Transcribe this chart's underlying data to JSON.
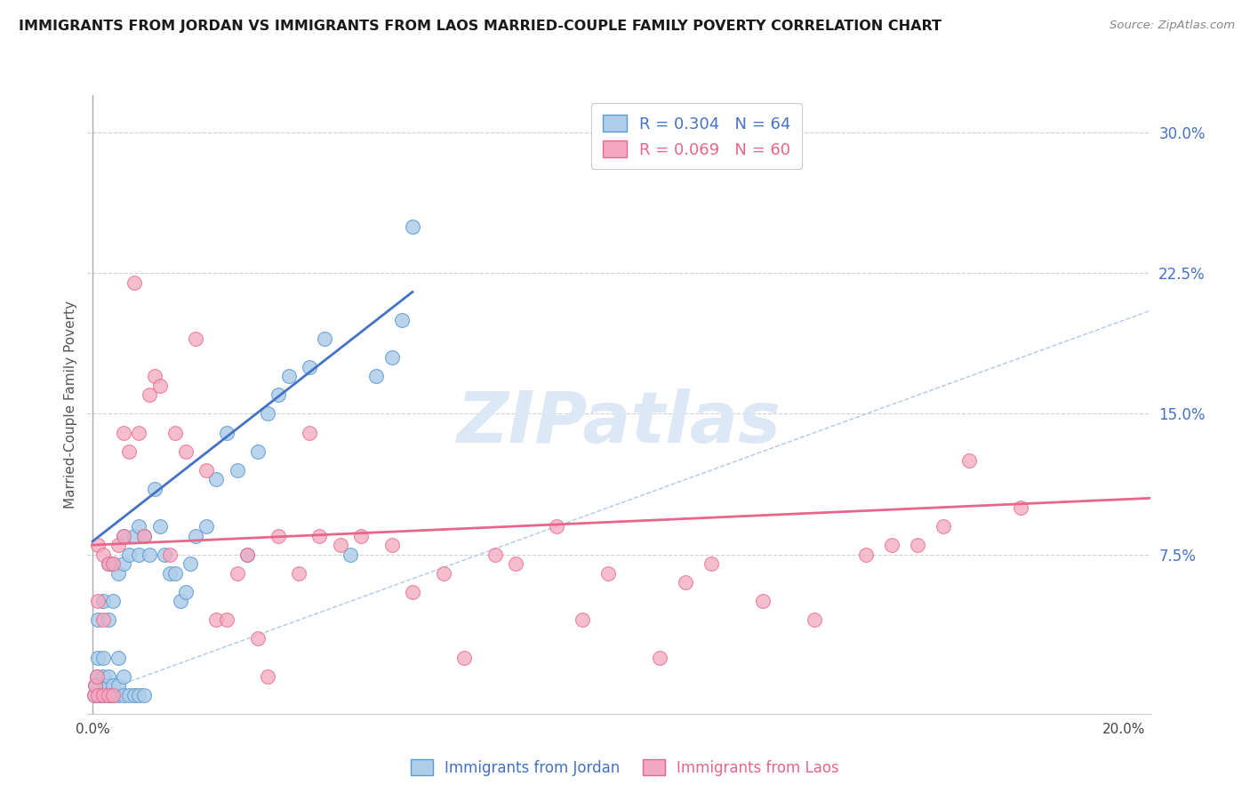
{
  "title": "IMMIGRANTS FROM JORDAN VS IMMIGRANTS FROM LAOS MARRIED-COUPLE FAMILY POVERTY CORRELATION CHART",
  "source": "Source: ZipAtlas.com",
  "ylabel": "Married-Couple Family Poverty",
  "xlim": [
    -0.001,
    0.205
  ],
  "ylim": [
    -0.01,
    0.32
  ],
  "xticks": [
    0.0,
    0.05,
    0.1,
    0.15,
    0.2
  ],
  "xtick_labels": [
    "0.0%",
    "",
    "",
    "",
    "20.0%"
  ],
  "ytick_labels_right": [
    "7.5%",
    "15.0%",
    "22.5%",
    "30.0%"
  ],
  "yticks_right": [
    0.075,
    0.15,
    0.225,
    0.3
  ],
  "legend_jordan": "R = 0.304   N = 64",
  "legend_laos": "R = 0.069   N = 60",
  "jordan_color": "#aecde8",
  "laos_color": "#f4a7c0",
  "jordan_edge_color": "#5b9bd5",
  "laos_edge_color": "#e8668a",
  "jordan_line_color": "#4472c4",
  "laos_line_color": "#e8668a",
  "ref_line_color": "#aec8e8",
  "grid_color": "#d0d0d0",
  "watermark": "ZIPatlas",
  "watermark_color": "#dce8f5",
  "jordan_scatter_x": [
    0.0003,
    0.0005,
    0.0008,
    0.001,
    0.001,
    0.001,
    0.0015,
    0.002,
    0.002,
    0.002,
    0.002,
    0.0025,
    0.003,
    0.003,
    0.003,
    0.003,
    0.003,
    0.004,
    0.004,
    0.004,
    0.004,
    0.005,
    0.005,
    0.005,
    0.005,
    0.006,
    0.006,
    0.006,
    0.006,
    0.007,
    0.007,
    0.008,
    0.008,
    0.009,
    0.009,
    0.009,
    0.01,
    0.01,
    0.011,
    0.012,
    0.013,
    0.014,
    0.015,
    0.016,
    0.017,
    0.018,
    0.019,
    0.02,
    0.022,
    0.024,
    0.026,
    0.028,
    0.03,
    0.032,
    0.034,
    0.036,
    0.038,
    0.042,
    0.045,
    0.05,
    0.055,
    0.058,
    0.06,
    0.062
  ],
  "jordan_scatter_y": [
    0.0,
    0.005,
    0.01,
    0.0,
    0.02,
    0.04,
    0.0,
    0.0,
    0.01,
    0.02,
    0.05,
    0.005,
    0.0,
    0.005,
    0.01,
    0.04,
    0.07,
    0.0,
    0.005,
    0.05,
    0.07,
    0.0,
    0.005,
    0.02,
    0.065,
    0.0,
    0.01,
    0.07,
    0.085,
    0.0,
    0.075,
    0.0,
    0.085,
    0.0,
    0.075,
    0.09,
    0.0,
    0.085,
    0.075,
    0.11,
    0.09,
    0.075,
    0.065,
    0.065,
    0.05,
    0.055,
    0.07,
    0.085,
    0.09,
    0.115,
    0.14,
    0.12,
    0.075,
    0.13,
    0.15,
    0.16,
    0.17,
    0.175,
    0.19,
    0.075,
    0.17,
    0.18,
    0.2,
    0.25
  ],
  "laos_scatter_x": [
    0.0003,
    0.0005,
    0.0008,
    0.001,
    0.001,
    0.001,
    0.002,
    0.002,
    0.002,
    0.003,
    0.003,
    0.004,
    0.004,
    0.005,
    0.006,
    0.006,
    0.007,
    0.008,
    0.009,
    0.01,
    0.011,
    0.012,
    0.013,
    0.015,
    0.016,
    0.018,
    0.02,
    0.022,
    0.024,
    0.026,
    0.028,
    0.03,
    0.032,
    0.034,
    0.036,
    0.04,
    0.042,
    0.044,
    0.048,
    0.052,
    0.058,
    0.062,
    0.068,
    0.072,
    0.078,
    0.082,
    0.09,
    0.095,
    0.1,
    0.11,
    0.115,
    0.12,
    0.13,
    0.14,
    0.15,
    0.155,
    0.16,
    0.165,
    0.17,
    0.18
  ],
  "laos_scatter_y": [
    0.0,
    0.005,
    0.01,
    0.0,
    0.05,
    0.08,
    0.0,
    0.04,
    0.075,
    0.0,
    0.07,
    0.0,
    0.07,
    0.08,
    0.14,
    0.085,
    0.13,
    0.22,
    0.14,
    0.085,
    0.16,
    0.17,
    0.165,
    0.075,
    0.14,
    0.13,
    0.19,
    0.12,
    0.04,
    0.04,
    0.065,
    0.075,
    0.03,
    0.01,
    0.085,
    0.065,
    0.14,
    0.085,
    0.08,
    0.085,
    0.08,
    0.055,
    0.065,
    0.02,
    0.075,
    0.07,
    0.09,
    0.04,
    0.065,
    0.02,
    0.06,
    0.07,
    0.05,
    0.04,
    0.075,
    0.08,
    0.08,
    0.09,
    0.125,
    0.1
  ],
  "jordan_trend_x": [
    0.0,
    0.062
  ],
  "jordan_trend_y": [
    0.082,
    0.215
  ],
  "laos_trend_x": [
    0.0,
    0.205
  ],
  "laos_trend_y": [
    0.08,
    0.105
  ],
  "ref_line_x": [
    0.0,
    0.205
  ],
  "ref_line_y": [
    0.0,
    0.205
  ]
}
